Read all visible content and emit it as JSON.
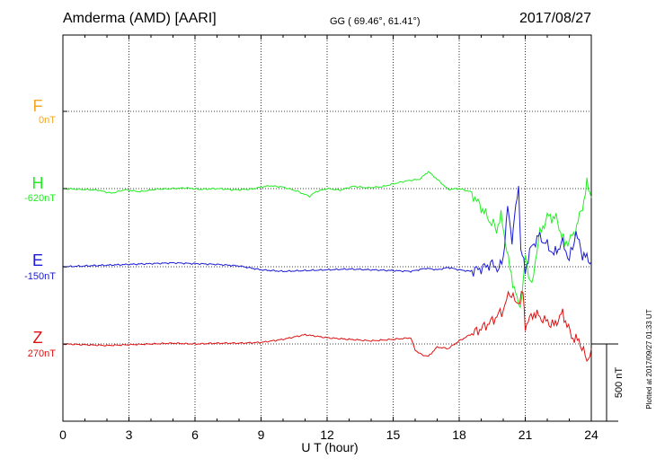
{
  "header": {
    "station": "Amderma (AMD)  [AARI]",
    "coords": "GG ( 69.46°,  61.41°)",
    "date": "2017/08/27"
  },
  "footer_note": "Plotted at 2017/09/27 01:33 UT",
  "chart_data": {
    "type": "line",
    "xlabel": "U T (hour)",
    "xlim": [
      0,
      24
    ],
    "x_ticks": [
      "0",
      "3",
      "6",
      "9",
      "12",
      "15",
      "18",
      "21",
      "24"
    ],
    "grid": true,
    "scale_bar": {
      "label": "500 nT",
      "value_nT": 500
    },
    "series": [
      {
        "name": "F",
        "baseline_label": "0nT",
        "color": "#f5a623",
        "points": []
      },
      {
        "name": "H",
        "baseline_label": "-620nT",
        "color": "#22ee22",
        "points": [
          [
            0,
            0
          ],
          [
            0.8,
            -5
          ],
          [
            1.6,
            -10
          ],
          [
            2.2,
            -30
          ],
          [
            2.8,
            -8
          ],
          [
            3.5,
            -20
          ],
          [
            4.2,
            -5
          ],
          [
            5,
            0
          ],
          [
            5.6,
            5
          ],
          [
            6.2,
            -5
          ],
          [
            7,
            0
          ],
          [
            7.8,
            -8
          ],
          [
            8.6,
            -3
          ],
          [
            9,
            10
          ],
          [
            9.4,
            18
          ],
          [
            10,
            10
          ],
          [
            10.6,
            -15
          ],
          [
            11.2,
            -50
          ],
          [
            11.5,
            -20
          ],
          [
            12,
            0
          ],
          [
            12.6,
            -10
          ],
          [
            13.2,
            15
          ],
          [
            13.8,
            5
          ],
          [
            14.5,
            12
          ],
          [
            15,
            30
          ],
          [
            15.6,
            50
          ],
          [
            16.2,
            60
          ],
          [
            16.6,
            110
          ],
          [
            17,
            60
          ],
          [
            17.5,
            -5
          ],
          [
            18,
            0
          ],
          [
            18.5,
            -20
          ],
          [
            19,
            -120
          ],
          [
            19.4,
            -210
          ],
          [
            19.7,
            -260
          ],
          [
            19.9,
            -180
          ],
          [
            20.1,
            -340
          ],
          [
            20.3,
            -520
          ],
          [
            20.5,
            -640
          ],
          [
            20.7,
            -760
          ],
          [
            20.85,
            -700
          ],
          [
            21,
            -440
          ],
          [
            21.3,
            -640
          ],
          [
            21.6,
            -320
          ],
          [
            22,
            -180
          ],
          [
            22.4,
            -190
          ],
          [
            22.8,
            -360
          ],
          [
            23.2,
            -300
          ],
          [
            23.6,
            -120
          ],
          [
            23.8,
            30
          ],
          [
            24,
            -60
          ]
        ]
      },
      {
        "name": "E",
        "baseline_label": "-150nT",
        "color": "#1a1ad6",
        "points": [
          [
            0,
            0
          ],
          [
            1,
            5
          ],
          [
            2,
            10
          ],
          [
            3,
            15
          ],
          [
            4,
            20
          ],
          [
            5,
            25
          ],
          [
            6,
            20
          ],
          [
            7,
            15
          ],
          [
            8,
            5
          ],
          [
            9,
            -20
          ],
          [
            10,
            -30
          ],
          [
            11,
            -25
          ],
          [
            12,
            -20
          ],
          [
            13,
            -15
          ],
          [
            14,
            -20
          ],
          [
            15,
            -25
          ],
          [
            15.8,
            -30
          ],
          [
            16.5,
            -10
          ],
          [
            17,
            -20
          ],
          [
            17.5,
            -5
          ],
          [
            18,
            -20
          ],
          [
            18.5,
            -30
          ],
          [
            19,
            -10
          ],
          [
            19.5,
            20
          ],
          [
            19.8,
            -20
          ],
          [
            20,
            60
          ],
          [
            20.2,
            380
          ],
          [
            20.4,
            180
          ],
          [
            20.5,
            300
          ],
          [
            20.7,
            520
          ],
          [
            20.8,
            120
          ],
          [
            21,
            -30
          ],
          [
            21.2,
            100
          ],
          [
            21.6,
            200
          ],
          [
            22,
            140
          ],
          [
            22.3,
            80
          ],
          [
            22.7,
            160
          ],
          [
            23,
            40
          ],
          [
            23.3,
            220
          ],
          [
            23.6,
            80
          ],
          [
            24,
            30
          ]
        ]
      },
      {
        "name": "Z",
        "baseline_label": "270nT",
        "color": "#e01010",
        "points": [
          [
            0,
            0
          ],
          [
            1,
            -5
          ],
          [
            2,
            -10
          ],
          [
            3,
            -5
          ],
          [
            4,
            0
          ],
          [
            5,
            5
          ],
          [
            6,
            0
          ],
          [
            7,
            5
          ],
          [
            8,
            5
          ],
          [
            9,
            10
          ],
          [
            10,
            30
          ],
          [
            11,
            60
          ],
          [
            12,
            40
          ],
          [
            13,
            30
          ],
          [
            14,
            20
          ],
          [
            15,
            30
          ],
          [
            15.8,
            40
          ],
          [
            16,
            -40
          ],
          [
            16.3,
            -70
          ],
          [
            16.6,
            -80
          ],
          [
            17,
            -20
          ],
          [
            17.5,
            -30
          ],
          [
            18,
            20
          ],
          [
            18.5,
            60
          ],
          [
            19,
            100
          ],
          [
            19.5,
            150
          ],
          [
            20,
            220
          ],
          [
            20.3,
            340
          ],
          [
            20.6,
            260
          ],
          [
            20.9,
            320
          ],
          [
            21,
            120
          ],
          [
            21.4,
            200
          ],
          [
            21.8,
            160
          ],
          [
            22.3,
            120
          ],
          [
            22.7,
            200
          ],
          [
            23.1,
            50
          ],
          [
            23.5,
            10
          ],
          [
            23.8,
            -110
          ],
          [
            24,
            -30
          ]
        ]
      }
    ]
  }
}
